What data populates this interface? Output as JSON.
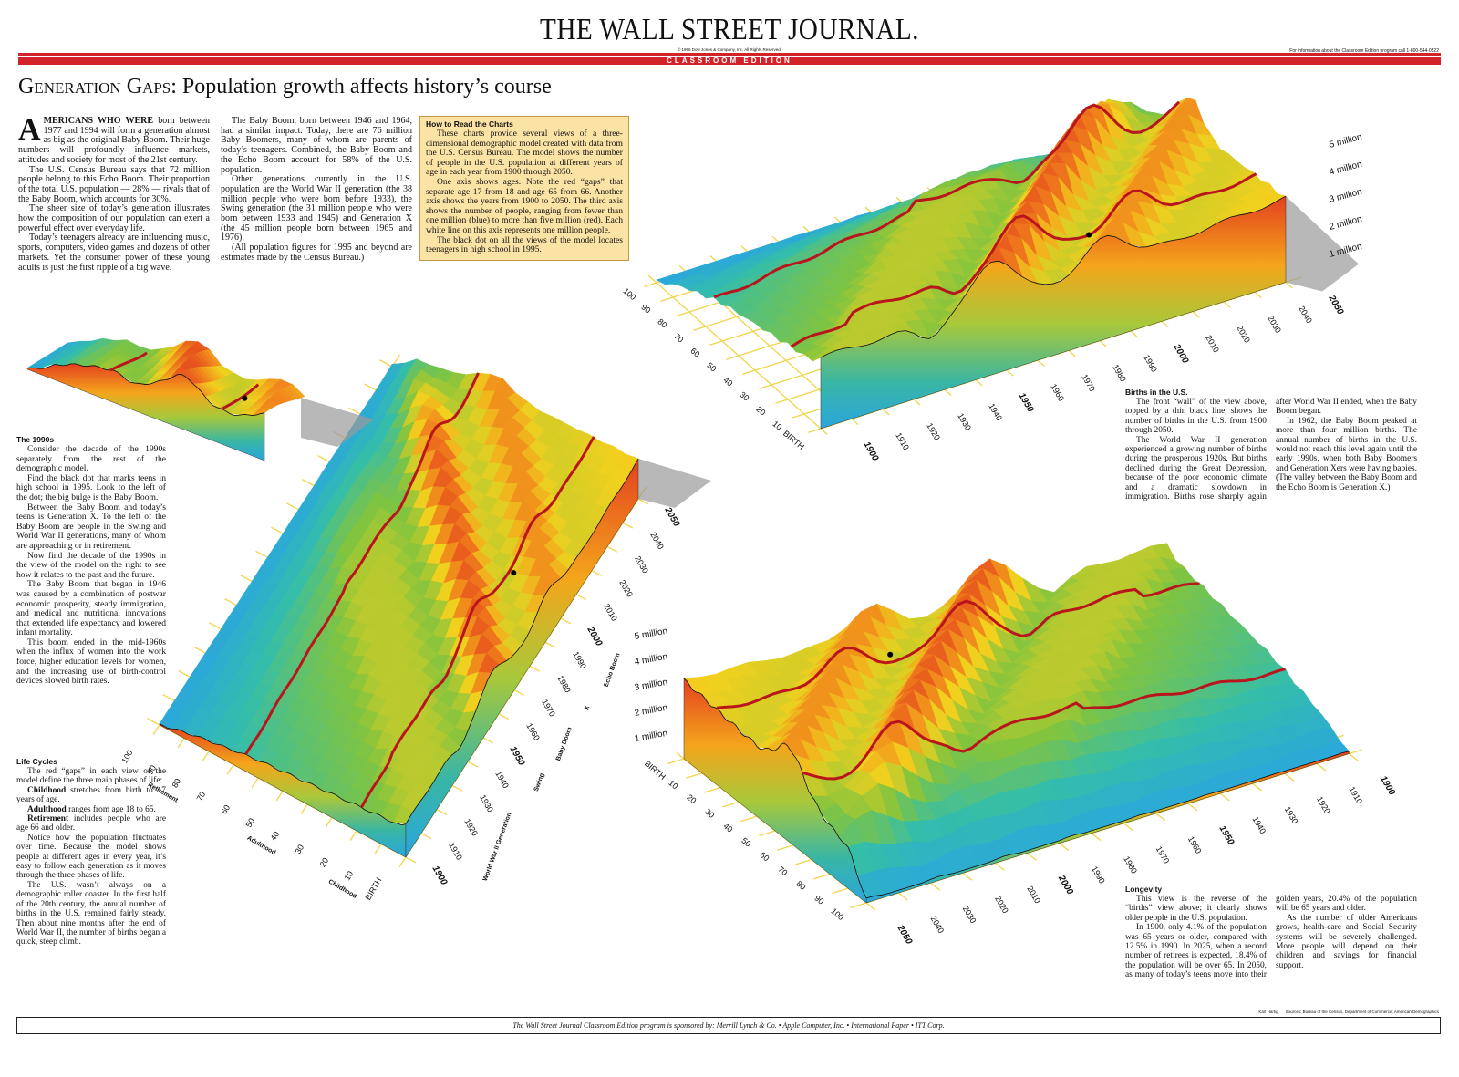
{
  "header": {
    "masthead": "THE WALL STREET JOURNAL.",
    "copyright": "© 1996 Dow Jones & Company, Inc. All Rights Reserved.",
    "info": "For information about the Classroom Edition program call 1-800-544-0522",
    "edition": "CLASSROOM EDITION"
  },
  "headline": {
    "lead": "Generation Gaps:",
    "rest": " Population growth affects history’s course"
  },
  "intro": {
    "lead": "AMERICANS WHO WERE",
    "first": " born between 1977 and 1994 will form a generation almost as big as the original Baby Boom. Their huge numbers will profoundly influence markets, attitudes and society for most of the 21st century.",
    "paragraphs": [
      "The U.S. Census Bureau says that 72 million people belong to this Echo Boom. Their proportion of the total U.S. population — 28% — rivals that of the Baby Boom, which accounts for 30%.",
      "The sheer size of today’s generation illustrates how the composition of our population can exert a powerful effect over everyday life.",
      "Today’s teenagers already are influencing music, sports, computers, video games and dozens of other markets. Yet the consumer power of these young adults is just the first ripple of a big wave.",
      "The Baby Boom, born between 1946 and 1964, had a similar impact. Today, there are 76 million Baby Boomers, many of whom are parents of today’s teenagers. Combined, the Baby Boom and the Echo Boom account for 58% of the U.S. population.",
      "Other generations currently in the U.S. population are the World War II generation (the 38 million people who were born before 1933), the Swing generation (the 31 million people who were born between 1933 and 1945) and Generation X (the 45 million people born between 1965 and 1976).",
      "(All population figures for 1995 and beyond are estimates made by the Census Bureau.)"
    ]
  },
  "how_to_read": {
    "title": "How to Read the Charts",
    "paragraphs": [
      "These charts provide several views of a three-dimensional demographic model created with data from the U.S. Census Bureau. The model shows the number of people in the U.S. population at different years of age in each year from 1900 through 2050.",
      "One axis shows ages. Note the red “gaps” that separate age 17 from 18 and age 65 from 66. Another axis shows the years from 1900 to 2050. The third axis shows the number of people, ranging from fewer than one million (blue) to more than five million (red). Each white line on this axis represents one million people.",
      "The black dot on all the views of the model locates teenagers in high school in 1995."
    ]
  },
  "nineties": {
    "title": "The 1990s",
    "paragraphs": [
      "Consider the decade of the 1990s separately from the rest of the demographic model.",
      "Find the black dot that marks teens in high school in 1995. Look to the left of the dot; the big bulge is the Baby Boom.",
      "Between the Baby Boom and today’s teens is Generation X. To the left of the Baby Boom are people in the Swing and World War II generations, many of whom are approaching or in retirement.",
      "Now find the decade of the 1990s in the view of the model on the right to see how it relates to the past and the future.",
      "The Baby Boom that began in 1946 was caused by a combination of postwar economic prosperity, steady immigration, and medical and nutritional innovations that extended life expectancy and lowered infant mortality.",
      "This boom ended in the mid-1960s when the influx of women into the work force, higher education levels for women, and the increasing use of birth-control devices slowed birth rates."
    ]
  },
  "life_cycles": {
    "title": "Life Cycles",
    "intro": "The red “gaps” in each view of the model define the three main phases of life:",
    "items": [
      {
        "term": "Childhood",
        "text": " stretches from birth to 17 years of age."
      },
      {
        "term": "Adulthood",
        "text": " ranges from age 18 to 65."
      },
      {
        "term": "Retirement",
        "text": " includes people who are age 66 and older."
      }
    ],
    "paragraphs": [
      "Notice how the population fluctuates over time. Because the model shows people at different ages in every year, it’s easy to follow each generation as it moves through the three phases of life.",
      "The U.S. wasn’t always on a demographic roller coaster. In the first half of the 20th century, the annual number of births in the U.S. remained fairly steady. Then about nine months after the end of World War II, the number of births began a quick, steep climb."
    ]
  },
  "births": {
    "title": "Births in the U.S.",
    "paragraphs": [
      "The front “wall” of the view above, topped by a thin black line, shows the number of births in the U.S. from 1900 through 2050.",
      "The World War II generation experienced a growing number of births during the prosperous 1920s. But births declined during the Great Depression, because of the poor economic climate and a dramatic slowdown in immigration. Births rose sharply again after World War II ended, when the Baby Boom began.",
      "In 1962, the Baby Boom peaked at more than four million births. The annual number of births in the U.S. would not reach this level again until the early 1990s, when both Baby Boomers and Generation Xers were having babies. (The valley between the Baby Boom and the Echo Boom is Generation X.)"
    ]
  },
  "longevity": {
    "title": "Longevity",
    "paragraphs": [
      "This view is the reverse of the “births” view above; it clearly shows older people in the U.S. population.",
      "In 1900, only 4.1% of the population was 65 years or older, compared with 12.5% in 1990. In 2025, when a record number of retirees is expected, 18.4% of the population will be over 65. In 2050, as many of today’s teens move into their golden years, 20.4% of the population will be 65 years and older.",
      "As the number of older Americans grows, health-care and Social Security systems will be severely challenged. More people will depend on their children and savings for financial support."
    ]
  },
  "charts": {
    "births_view": {
      "ages": [
        "BIRTH",
        "10",
        "20",
        "30",
        "40",
        "50",
        "60",
        "70",
        "80",
        "90",
        "100"
      ],
      "years": [
        "1900",
        "1910",
        "1920",
        "1930",
        "1940",
        "1950",
        "1960",
        "1970",
        "1980",
        "1990",
        "2000",
        "2010",
        "2020",
        "2030",
        "2040",
        "2050"
      ],
      "millions": [
        "1 million",
        "2 million",
        "3 million",
        "4 million",
        "5 million"
      ]
    },
    "cohort_view": {
      "ages": [
        "BIRTH",
        "10",
        "20",
        "30",
        "40",
        "50",
        "60",
        "70",
        "80",
        "90",
        "100"
      ],
      "years": [
        "1900",
        "1910",
        "1920",
        "1930",
        "1940",
        "1950",
        "1960",
        "1970",
        "1980",
        "1990",
        "2000",
        "2010",
        "2020",
        "2030",
        "2040",
        "2050"
      ],
      "generations": [
        "World War II Generation",
        "Swing",
        "Baby Boom",
        "X",
        "Echo Boom"
      ],
      "phases": [
        "Childhood",
        "Adulthood",
        "Retirement"
      ]
    },
    "longevity_view": {
      "ages": [
        "BIRTH",
        "10",
        "20",
        "30",
        "40",
        "50",
        "60",
        "70",
        "80",
        "90",
        "100"
      ],
      "years": [
        "1900",
        "1910",
        "1920",
        "1930",
        "1940",
        "1950",
        "1960",
        "1970",
        "1980",
        "1990",
        "2000",
        "2010",
        "2020",
        "2030",
        "2040",
        "2050"
      ],
      "millions": [
        "1 million",
        "2 million",
        "3 million",
        "4 million",
        "5 million"
      ]
    }
  },
  "credits": {
    "artist": "Karl Hartig",
    "sources": "Sources: Bureau of the Census, Department of Commerce; American Demographics"
  },
  "footer": "The Wall Street Journal Classroom Edition program is sponsored by: Merrill Lynch & Co. • Apple Computer, Inc. • International Paper • ITT Corp."
}
